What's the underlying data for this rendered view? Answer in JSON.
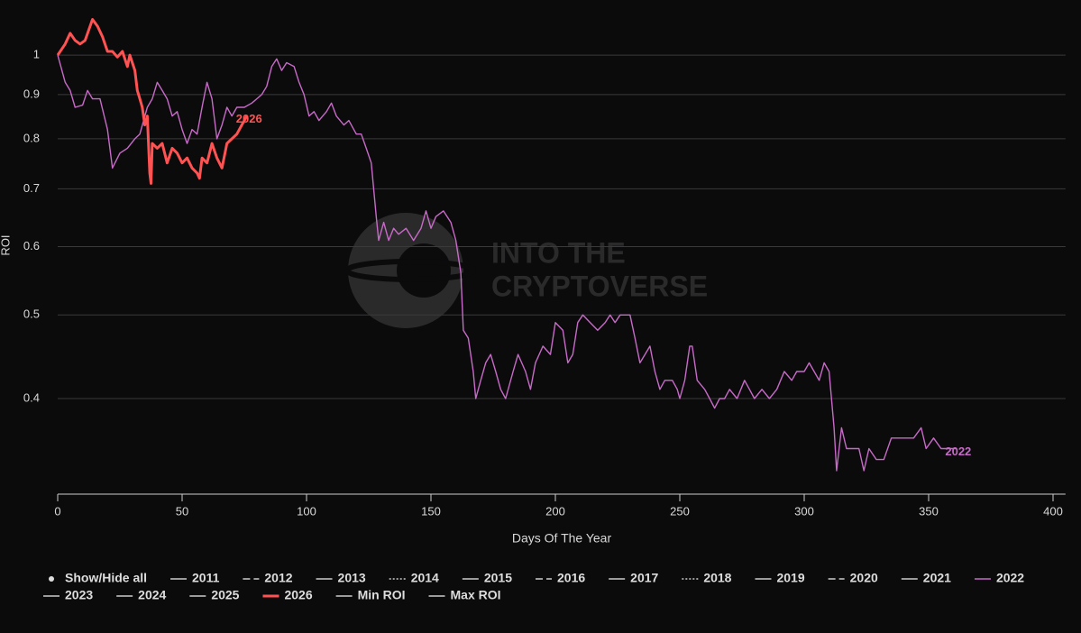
{
  "chart_data": {
    "type": "line",
    "y_label": "ROI",
    "x_label": "Days Of The Year",
    "watermark": [
      "INTO THE",
      "CRYPTOVERSE"
    ],
    "legend_toggle": "Show/Hide all",
    "log_y": true,
    "grid": true,
    "xlim": [
      0,
      405
    ],
    "xticks": [
      0,
      50,
      100,
      150,
      200,
      250,
      300,
      350,
      400
    ],
    "ylim": [
      0.31,
      1.12
    ],
    "yticks": [
      1,
      0.9,
      0.8,
      0.7,
      0.6,
      0.5,
      0.4
    ],
    "series": [
      {
        "name": "2011",
        "color": "#cccccc",
        "dash": "solid",
        "visible": false
      },
      {
        "name": "2012",
        "color": "#cccccc",
        "dash": "dashed",
        "visible": false
      },
      {
        "name": "2013",
        "color": "#cccccc",
        "dash": "solid",
        "visible": false
      },
      {
        "name": "2014",
        "color": "#cccccc",
        "dash": "dotted",
        "visible": false
      },
      {
        "name": "2015",
        "color": "#cccccc",
        "dash": "solid",
        "visible": false
      },
      {
        "name": "2016",
        "color": "#cccccc",
        "dash": "dashed",
        "visible": false
      },
      {
        "name": "2017",
        "color": "#cccccc",
        "dash": "solid",
        "visible": false
      },
      {
        "name": "2018",
        "color": "#cccccc",
        "dash": "dotted",
        "visible": false
      },
      {
        "name": "2019",
        "color": "#cccccc",
        "dash": "solid",
        "visible": false
      },
      {
        "name": "2020",
        "color": "#cccccc",
        "dash": "dashed",
        "visible": false
      },
      {
        "name": "2021",
        "color": "#cccccc",
        "dash": "solid",
        "visible": false
      },
      {
        "name": "2022",
        "color": "#c86ac8",
        "dash": "solid",
        "visible": true,
        "x": [
          0,
          3,
          5,
          7,
          10,
          12,
          14,
          17,
          20,
          22,
          25,
          28,
          31,
          33,
          36,
          38,
          40,
          42,
          44,
          46,
          48,
          50,
          52,
          54,
          56,
          58,
          60,
          62,
          64,
          66,
          68,
          70,
          72,
          75,
          78,
          80,
          82,
          84,
          86,
          88,
          90,
          92,
          95,
          97,
          99,
          101,
          103,
          105,
          108,
          110,
          112,
          115,
          117,
          120,
          122,
          124,
          126,
          128,
          129,
          131,
          133,
          135,
          137,
          140,
          143,
          146,
          148,
          150,
          152,
          155,
          158,
          160,
          162,
          163,
          165,
          167,
          168,
          170,
          172,
          174,
          176,
          178,
          180,
          183,
          185,
          188,
          190,
          192,
          195,
          198,
          200,
          203,
          205,
          207,
          209,
          211,
          214,
          217,
          220,
          222,
          224,
          226,
          228,
          230,
          232,
          234,
          236,
          238,
          240,
          242,
          244,
          247,
          249,
          250,
          252,
          254,
          255,
          257,
          260,
          262,
          264,
          266,
          268,
          270,
          273,
          276,
          278,
          280,
          283,
          286,
          289,
          292,
          295,
          297,
          300,
          302,
          304,
          306,
          308,
          310,
          312,
          313,
          315,
          317,
          320,
          322,
          324,
          326,
          329,
          332,
          335,
          338,
          341,
          344,
          347,
          349,
          352,
          355,
          358,
          361
        ],
        "values": [
          1.0,
          0.93,
          0.91,
          0.87,
          0.875,
          0.91,
          0.89,
          0.89,
          0.82,
          0.74,
          0.77,
          0.78,
          0.8,
          0.81,
          0.87,
          0.89,
          0.93,
          0.91,
          0.89,
          0.85,
          0.86,
          0.82,
          0.79,
          0.82,
          0.81,
          0.87,
          0.93,
          0.89,
          0.8,
          0.83,
          0.87,
          0.85,
          0.87,
          0.87,
          0.88,
          0.89,
          0.9,
          0.92,
          0.97,
          0.99,
          0.96,
          0.98,
          0.97,
          0.93,
          0.9,
          0.85,
          0.86,
          0.84,
          0.86,
          0.88,
          0.85,
          0.83,
          0.84,
          0.81,
          0.81,
          0.78,
          0.75,
          0.65,
          0.61,
          0.64,
          0.61,
          0.63,
          0.62,
          0.63,
          0.61,
          0.63,
          0.66,
          0.63,
          0.65,
          0.66,
          0.64,
          0.61,
          0.56,
          0.48,
          0.47,
          0.43,
          0.4,
          0.42,
          0.44,
          0.45,
          0.43,
          0.41,
          0.4,
          0.43,
          0.45,
          0.43,
          0.41,
          0.44,
          0.46,
          0.45,
          0.49,
          0.48,
          0.44,
          0.45,
          0.49,
          0.5,
          0.49,
          0.48,
          0.49,
          0.5,
          0.49,
          0.5,
          0.5,
          0.5,
          0.47,
          0.44,
          0.45,
          0.46,
          0.43,
          0.41,
          0.42,
          0.42,
          0.41,
          0.4,
          0.42,
          0.46,
          0.46,
          0.42,
          0.41,
          0.4,
          0.39,
          0.4,
          0.4,
          0.41,
          0.4,
          0.42,
          0.41,
          0.4,
          0.41,
          0.4,
          0.41,
          0.43,
          0.42,
          0.43,
          0.43,
          0.44,
          0.43,
          0.42,
          0.44,
          0.43,
          0.37,
          0.33,
          0.37,
          0.35,
          0.35,
          0.35,
          0.33,
          0.35,
          0.34,
          0.34,
          0.36,
          0.36,
          0.36,
          0.36,
          0.37,
          0.35,
          0.36,
          0.35,
          0.35,
          0.35
        ]
      },
      {
        "name": "2023",
        "color": "#cccccc",
        "dash": "solid",
        "visible": false
      },
      {
        "name": "2024",
        "color": "#cccccc",
        "dash": "solid",
        "visible": false
      },
      {
        "name": "2025",
        "color": "#cccccc",
        "dash": "solid",
        "visible": false
      },
      {
        "name": "2026",
        "color": "#ff5252",
        "dash": "solid",
        "visible": true,
        "bold": true,
        "x": [
          0,
          3,
          5,
          7,
          9,
          11,
          13,
          14,
          16,
          18,
          20,
          22,
          24,
          26,
          28,
          29,
          31,
          32,
          33,
          34,
          35,
          36,
          37,
          37.5,
          38,
          40,
          42,
          44,
          46,
          48,
          50,
          52,
          54,
          56,
          57,
          58,
          60,
          62,
          64,
          66,
          68,
          70,
          72,
          74,
          76
        ],
        "values": [
          1.0,
          1.03,
          1.06,
          1.04,
          1.03,
          1.04,
          1.08,
          1.1,
          1.08,
          1.05,
          1.01,
          1.01,
          0.995,
          1.01,
          0.97,
          1.0,
          0.96,
          0.91,
          0.89,
          0.87,
          0.83,
          0.85,
          0.73,
          0.71,
          0.79,
          0.78,
          0.79,
          0.75,
          0.78,
          0.77,
          0.75,
          0.76,
          0.74,
          0.73,
          0.72,
          0.76,
          0.75,
          0.79,
          0.76,
          0.74,
          0.79,
          0.8,
          0.81,
          0.83,
          0.85
        ]
      },
      {
        "name": "Min ROI",
        "color": "#cccccc",
        "dash": "solid",
        "visible": false
      },
      {
        "name": "Max ROI",
        "color": "#cccccc",
        "dash": "solid",
        "visible": false
      }
    ]
  }
}
